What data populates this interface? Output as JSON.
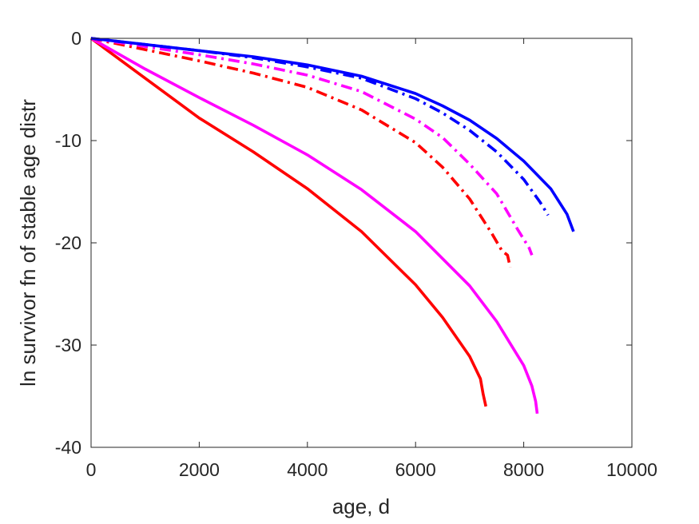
{
  "chart_data": {
    "type": "line",
    "xlabel": "age, d",
    "ylabel": "ln survivor fn of stable age distr",
    "xlim": [
      0,
      10000
    ],
    "ylim": [
      -40,
      0
    ],
    "xticks": [
      0,
      2000,
      4000,
      6000,
      8000,
      10000
    ],
    "yticks": [
      0,
      -10,
      -20,
      -30,
      -40
    ],
    "xtick_labels": [
      "0",
      "2000",
      "4000",
      "6000",
      "8000",
      "10000"
    ],
    "ytick_labels": [
      "0",
      "-10",
      "-20",
      "-30",
      "-40"
    ],
    "grid": false,
    "legend": "none",
    "series": [
      {
        "color": "#ff0000",
        "dash": "solid",
        "x": [
          0,
          1000,
          2000,
          3000,
          4000,
          5000,
          6000,
          6500,
          7000,
          7200,
          7250,
          7300
        ],
        "y": [
          0,
          -3.9,
          -7.8,
          -11.1,
          -14.7,
          -18.9,
          -24.1,
          -27.3,
          -31.1,
          -33.3,
          -34.8,
          -36.0
        ]
      },
      {
        "color": "#ff00ff",
        "dash": "solid",
        "x": [
          0,
          1000,
          2000,
          3000,
          4000,
          5000,
          6000,
          7000,
          7500,
          8000,
          8150,
          8220,
          8250
        ],
        "y": [
          0,
          -3.0,
          -5.8,
          -8.5,
          -11.4,
          -14.8,
          -18.9,
          -24.2,
          -27.7,
          -32.0,
          -34.0,
          -35.5,
          -36.7
        ]
      },
      {
        "color": "#ff0000",
        "dash": "dashdot",
        "x": [
          0,
          1000,
          2000,
          3000,
          4000,
          5000,
          6000,
          6500,
          7000,
          7400,
          7600,
          7700,
          7750
        ],
        "y": [
          0,
          -1.1,
          -2.2,
          -3.4,
          -4.8,
          -7.0,
          -10.2,
          -12.6,
          -15.7,
          -19.0,
          -20.8,
          -21.2,
          -22.4
        ]
      },
      {
        "color": "#ff00ff",
        "dash": "dashdot",
        "x": [
          0,
          1000,
          2000,
          3000,
          4000,
          5000,
          6000,
          6500,
          7000,
          7500,
          7900,
          8100,
          8150
        ],
        "y": [
          0,
          -0.8,
          -1.6,
          -2.5,
          -3.6,
          -5.2,
          -7.9,
          -9.7,
          -12.3,
          -15.2,
          -18.8,
          -20.5,
          -21.2
        ]
      },
      {
        "color": "#0000ff",
        "dash": "dashdot",
        "x": [
          0,
          1000,
          2000,
          3000,
          4000,
          5000,
          6000,
          6500,
          7000,
          7500,
          8000,
          8300,
          8450
        ],
        "y": [
          0,
          -0.6,
          -1.2,
          -1.9,
          -2.8,
          -3.9,
          -5.9,
          -7.3,
          -9.0,
          -11.1,
          -13.8,
          -16.0,
          -17.3
        ]
      },
      {
        "color": "#0000ff",
        "dash": "solid",
        "x": [
          0,
          1000,
          2000,
          3000,
          4000,
          5000,
          6000,
          6500,
          7000,
          7500,
          8000,
          8500,
          8800,
          8920
        ],
        "y": [
          0,
          -0.6,
          -1.2,
          -1.8,
          -2.6,
          -3.7,
          -5.4,
          -6.6,
          -8.0,
          -9.8,
          -12.0,
          -14.7,
          -17.2,
          -18.9
        ]
      }
    ]
  }
}
